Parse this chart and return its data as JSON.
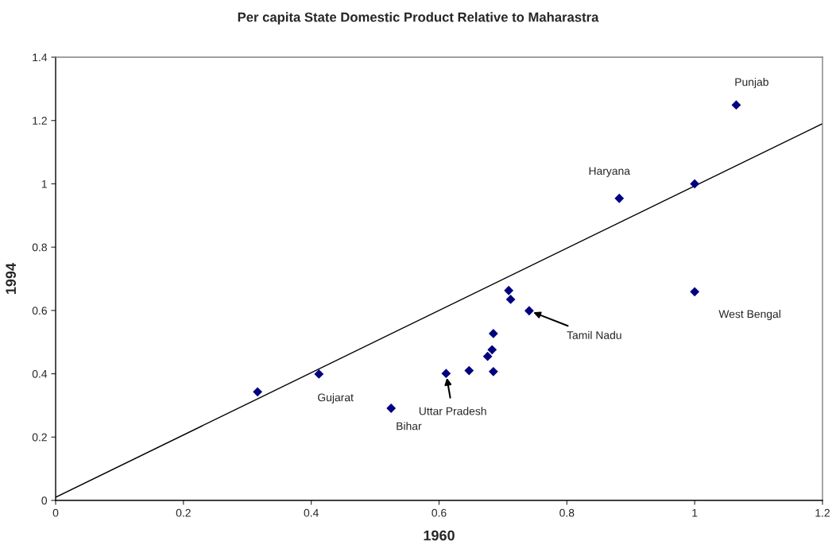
{
  "chart_data": {
    "type": "scatter",
    "title": "Per capita State Domestic Product Relative to Maharastra",
    "xlabel": "1960",
    "ylabel": "1994",
    "x": [
      0.316,
      0.412,
      0.525,
      0.611,
      0.647,
      0.685,
      0.676,
      0.683,
      0.685,
      0.709,
      0.712,
      0.741,
      0.882,
      1.0,
      1.0,
      1.065
    ],
    "series": [
      {
        "color": "#000080",
        "marker": "diamond",
        "values": [
          0.343,
          0.399,
          0.291,
          0.401,
          0.41,
          0.407,
          0.455,
          0.476,
          0.527,
          0.663,
          0.635,
          0.599,
          0.954,
          1.0,
          0.659,
          1.249
        ]
      },
      {
        "type": "line",
        "color": "#000000",
        "marker": "none",
        "x": [
          0,
          1.2
        ],
        "values": [
          0.01,
          1.19
        ]
      }
    ],
    "annotations": [
      {
        "text": "Punjab",
        "x": 1.065,
        "y": 1.249
      },
      {
        "text": "Haryana",
        "x": 0.882,
        "y": 0.954
      },
      {
        "text": "West Bengal",
        "x": 1.0,
        "y": 0.659
      },
      {
        "text": "Tamil Nadu",
        "x": 0.741,
        "y": 0.599
      },
      {
        "text": "Uttar Pradesh",
        "x": 0.611,
        "y": 0.401
      },
      {
        "text": "Gujarat",
        "x": 0.412,
        "y": 0.399
      },
      {
        "text": "Bihar",
        "x": 0.525,
        "y": 0.291
      }
    ],
    "xlim": [
      0,
      1.2
    ],
    "xticks": [
      0,
      0.2,
      0.4,
      0.6,
      0.8,
      1,
      1.2
    ],
    "ylim": [
      0,
      1.4
    ],
    "yticks": [
      0,
      0.2,
      0.4,
      0.6,
      0.8,
      1,
      1.2,
      1.4
    ],
    "grid": false,
    "legend": false
  }
}
